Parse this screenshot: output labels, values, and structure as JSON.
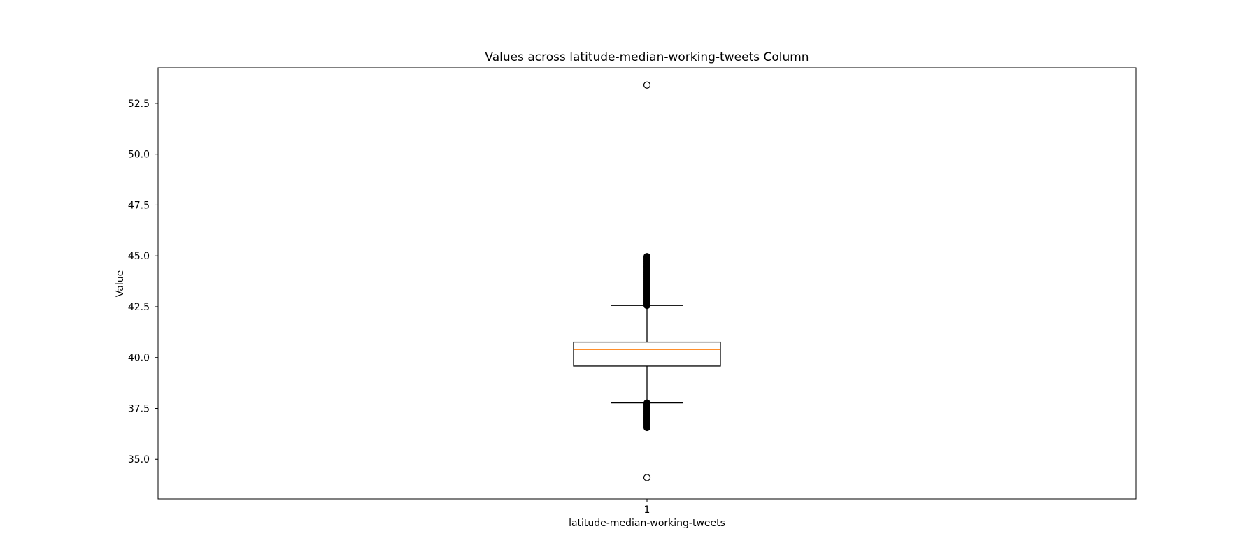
{
  "chart_data": {
    "type": "box",
    "title": "Values across latitude-median-working-tweets Column",
    "xlabel": "latitude-median-working-tweets",
    "ylabel": "Value",
    "categories": [
      "1"
    ],
    "ylim": [
      33.05,
      54.25
    ],
    "yticks": [
      35.0,
      37.5,
      40.0,
      42.5,
      45.0,
      47.5,
      50.0,
      52.5
    ],
    "ytick_labels": [
      "35.0",
      "37.5",
      "40.0",
      "42.5",
      "45.0",
      "47.5",
      "50.0",
      "52.5"
    ],
    "grid": false,
    "legend": "none",
    "boxes": [
      {
        "category": "1",
        "whisker_low": 37.77,
        "q1": 39.58,
        "median": 40.4,
        "q3": 40.76,
        "whisker_high": 42.56,
        "outlier_low_range": [
          36.55,
          37.77
        ],
        "outlier_high_range": [
          42.56,
          44.97
        ],
        "outliers_isolated": [
          34.1,
          53.4
        ]
      }
    ],
    "colors": {
      "box_edge": "#000000",
      "median_line": "#ff7f0e",
      "outlier_fill": "#000000"
    }
  }
}
